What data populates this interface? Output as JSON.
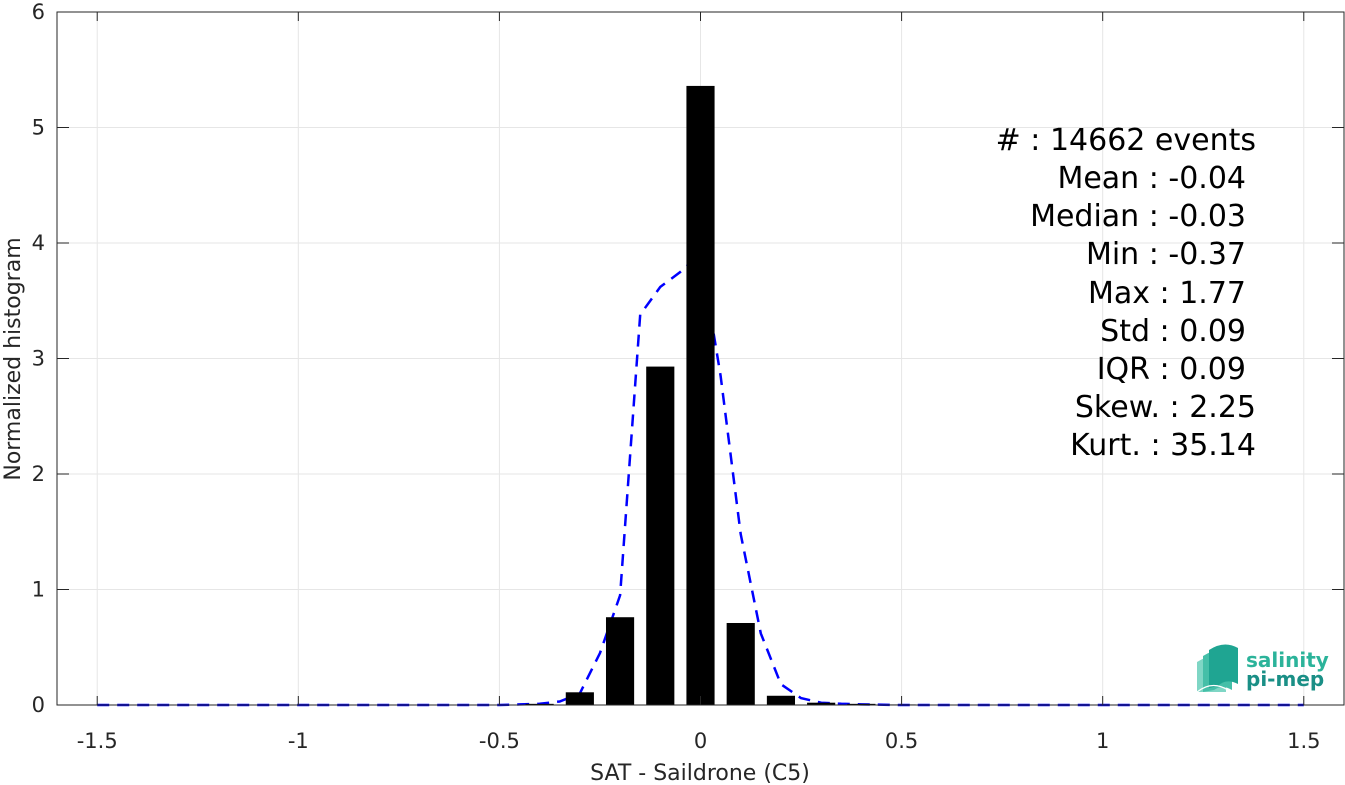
{
  "chart_data": {
    "type": "bar",
    "xlabel": "SAT - Saildrone (C5)",
    "ylabel": "Normalized histogram",
    "xlim": [
      -1.6,
      1.6
    ],
    "ylim": [
      0,
      6
    ],
    "xticks": [
      -1.5,
      -1,
      -0.5,
      0,
      0.5,
      1,
      1.5
    ],
    "xtick_labels": [
      "-1.5",
      "-1",
      "-0.5",
      "0",
      "0.5",
      "1",
      "1.5"
    ],
    "yticks": [
      0,
      1,
      2,
      3,
      4,
      5,
      6
    ],
    "ytick_labels": [
      "0",
      "1",
      "2",
      "3",
      "4",
      "5",
      "6"
    ],
    "grid": true,
    "bar_width": 0.07,
    "bar_color": "#000000",
    "curve_color": "#0000ff",
    "bars": {
      "x": [
        -0.4,
        -0.3,
        -0.2,
        -0.1,
        0.0,
        0.1,
        0.2,
        0.3,
        0.4,
        0.5
      ],
      "values": [
        0.01,
        0.11,
        0.76,
        2.93,
        5.36,
        0.71,
        0.08,
        0.02,
        0.01,
        0.005
      ]
    },
    "series": [
      {
        "style": "dashed",
        "x": [
          -1.5,
          -1.4,
          -1.3,
          -1.2,
          -1.1,
          -1.0,
          -0.9,
          -0.8,
          -0.7,
          -0.6,
          -0.5,
          -0.45,
          -0.4,
          -0.35,
          -0.3,
          -0.25,
          -0.2,
          -0.15,
          -0.1,
          -0.05,
          0.0,
          0.05,
          0.1,
          0.15,
          0.2,
          0.25,
          0.3,
          0.35,
          0.4,
          0.5,
          0.6,
          0.7,
          0.8,
          0.9,
          1.0,
          1.1,
          1.2,
          1.3,
          1.4,
          1.5
        ],
        "values": [
          0,
          0,
          0,
          0,
          0,
          0,
          0,
          0,
          0,
          0,
          0,
          0.005,
          0.01,
          0.03,
          0.1,
          0.45,
          0.95,
          3.38,
          3.62,
          3.75,
          3.91,
          2.85,
          1.48,
          0.62,
          0.18,
          0.06,
          0.02,
          0.01,
          0.005,
          0,
          0,
          0,
          0,
          0,
          0,
          0,
          0,
          0,
          0,
          0
        ]
      }
    ],
    "stats_lines": [
      "#  : 14662 events",
      "Mean : -0.04",
      "Median : -0.03",
      "Min : -0.37",
      "Max : 1.77",
      "Std : 0.09",
      "IQR : 0.09",
      "Skew. : 2.25",
      "Kurt. : 35.14"
    ]
  },
  "logo": {
    "line1": "salinity",
    "line2": "pi-mep",
    "color1": "#2bb39a",
    "color2": "#1a8f86"
  }
}
